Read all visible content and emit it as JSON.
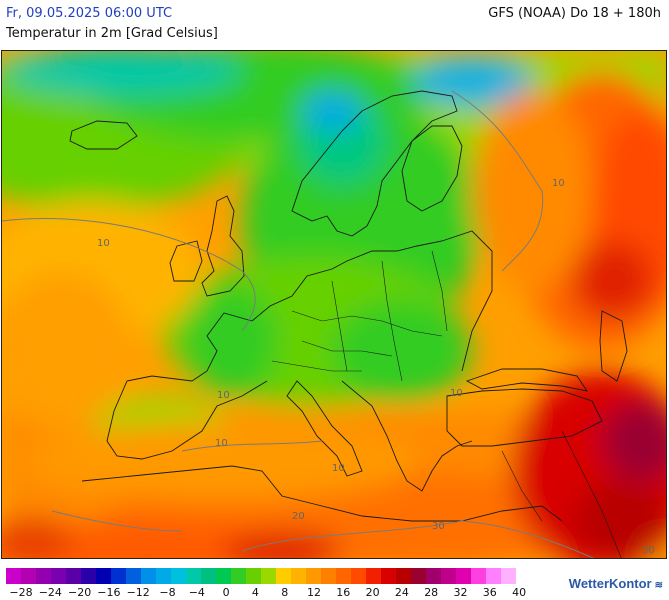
{
  "header": {
    "date": "Fr, 09.05.2025 06:00 UTC",
    "model": "GFS (NOAA) Do 18 + 180h",
    "parameter": "Temperatur in 2m [Grad Celsius]"
  },
  "map": {
    "contour_labels": [
      "10",
      "10",
      "10",
      "10",
      "10",
      "10",
      "30",
      "30",
      "20"
    ]
  },
  "legend": {
    "colors": [
      "#cc00cc",
      "#b300b3",
      "#9400b0",
      "#7a00b0",
      "#5a00a8",
      "#2a00a8",
      "#0000b3",
      "#0030d0",
      "#0060e0",
      "#0090e8",
      "#00aae8",
      "#00c0e0",
      "#00c8a8",
      "#00c080",
      "#00c850",
      "#33cc22",
      "#66d000",
      "#99d800",
      "#ffcc00",
      "#ffb300",
      "#ff9900",
      "#ff8000",
      "#ff6600",
      "#ff4a00",
      "#f02000",
      "#d80000",
      "#b80000",
      "#9a0030",
      "#a0006a",
      "#c0008a",
      "#e000b0",
      "#ff40e0",
      "#ff80ff",
      "#ffb0ff"
    ],
    "tick_labels": [
      "−28",
      "−24",
      "−20",
      "−16",
      "−12",
      "−8",
      "−4",
      "0",
      "4",
      "8",
      "12",
      "16",
      "20",
      "24",
      "28",
      "32",
      "36",
      "40"
    ]
  },
  "brand": {
    "name": "WetterKontor"
  }
}
